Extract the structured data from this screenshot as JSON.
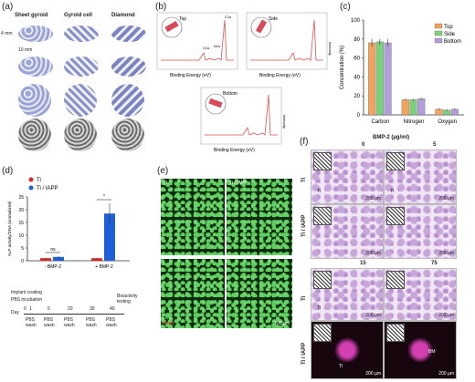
{
  "panels": {
    "a": {
      "label": "(a)",
      "columns": [
        "Sheet gyroid",
        "Gyroid cell",
        "Diamond"
      ],
      "dim_height": "4 mm",
      "dim_width": "10 mm"
    },
    "b": {
      "label": "(b)",
      "spectra": [
        {
          "name": "Top",
          "peaks": [
            "C1s",
            "N1s",
            "O1s"
          ]
        },
        {
          "name": "Side",
          "peaks": []
        },
        {
          "name": "Bottom",
          "peaks": []
        }
      ],
      "xlabel": "Binding Energy (eV)",
      "ylabel": "Intensity",
      "xticks": [
        "1000",
        "800",
        "600",
        "400",
        "200",
        "0"
      ]
    },
    "c": {
      "label": "(c)"
    },
    "d": {
      "label": "(d)",
      "legend": [
        "Ti",
        "Ti / IAPP"
      ],
      "ylabel": "ALP activity/DNA (normalized)",
      "yticks": [
        "0",
        "5",
        "10",
        "15",
        "20",
        "25"
      ],
      "xcats": [
        "- BMP-2",
        "+ BMP-2"
      ],
      "sig": [
        "ns",
        "*"
      ],
      "timeline_title": "Implant coating",
      "timeline_sub": "PBS incubation",
      "timeline_day": "Day",
      "timeline_days": [
        "0",
        "1",
        "5",
        "20",
        "30",
        "40"
      ],
      "timeline_steps": [
        "PBS wash",
        "PBS wash",
        "PBS wash",
        "PBS wash",
        "PBS wash"
      ],
      "timeline_end": "Bioactivity testing"
    },
    "e": {
      "label": "(e)",
      "titles": [
        "Ti",
        "Ti / IAPP"
      ],
      "live": "Live",
      "dead": "Dead",
      "scale": "200 µm"
    },
    "f": {
      "label": "(f)",
      "title": "BMP-2 (µg/ml)",
      "doses_top": [
        "0",
        "5"
      ],
      "doses_bottom": [
        "15",
        "75"
      ],
      "row_labels": [
        "Ti",
        "Ti / IAPP",
        "Ti",
        "Ti / IAPP"
      ],
      "tissue_labels": [
        "Ti",
        "Ti",
        "Ti",
        "Ti",
        "BM"
      ],
      "scales": [
        "200 µm",
        "200 µm",
        "200 µm",
        "200 µm",
        "200 µm",
        "200 µm",
        "200 µm",
        "200 µm"
      ]
    }
  },
  "chart_data": [
    {
      "type": "bar",
      "title": "",
      "categories": [
        "Carbon",
        "Nitrogen",
        "Oxygen"
      ],
      "series": [
        {
          "name": "Top",
          "values": [
            76,
            16,
            6
          ],
          "color": "#f2a35e"
        },
        {
          "name": "Side",
          "values": [
            77,
            16,
            5
          ],
          "color": "#7bd17b"
        },
        {
          "name": "Bottom",
          "values": [
            76,
            17,
            6
          ],
          "color": "#b39ddb"
        }
      ],
      "errors": [
        [
          4,
          1,
          1
        ],
        [
          3,
          1,
          1
        ],
        [
          4,
          1,
          1
        ]
      ],
      "ylabel": "Concentration (%)",
      "ylim": [
        0,
        100
      ],
      "yticks": [
        "0",
        "20",
        "40",
        "60",
        "80",
        "100"
      ],
      "legend_position": "top-right"
    },
    {
      "type": "bar",
      "title": "",
      "categories": [
        "- BMP-2",
        "+ BMP-2"
      ],
      "series": [
        {
          "name": "Ti",
          "values": [
            1,
            1
          ],
          "color": "#d62728"
        },
        {
          "name": "Ti / IAPP",
          "values": [
            1.5,
            18.5
          ],
          "color": "#1f5fd6"
        }
      ],
      "errors": [
        [
          0.2,
          0.2
        ],
        [
          0.3,
          4
        ]
      ],
      "ylabel": "ALP activity/DNA (normalized)",
      "ylim": [
        0,
        25
      ]
    }
  ]
}
